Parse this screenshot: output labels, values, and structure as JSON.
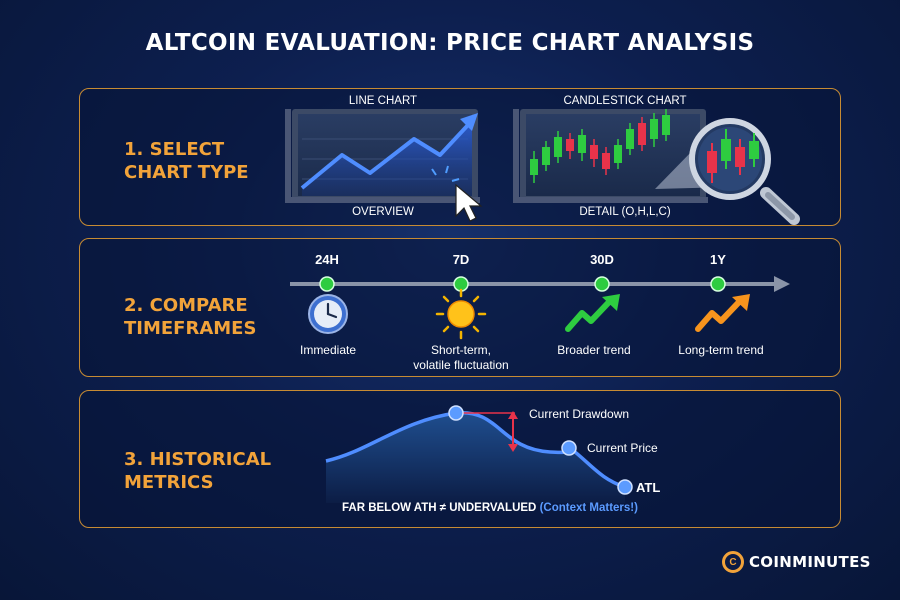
{
  "title": "ALTCOIN EVALUATION: PRICE CHART ANALYSIS",
  "colors": {
    "accent": "#f2a33a",
    "line_blue": "#3a7bff",
    "bull_green": "#2ecc40",
    "bear_red": "#e8334a",
    "arrow_red": "#e8334a"
  },
  "section1": {
    "title_line1": "1. SELECT",
    "title_line2": "CHART TYPE",
    "line_chart": {
      "top_label": "LINE CHART",
      "bottom_label": "OVERVIEW",
      "icon": "cursor-click-icon"
    },
    "candle_chart": {
      "top_label": "CANDLESTICK CHART",
      "bottom_label": "DETAIL (O,H,L,C)",
      "icon": "magnifier-icon"
    }
  },
  "section2": {
    "title_line1": "2. COMPARE",
    "title_line2": "TIMEFRAMES",
    "timeframes": [
      {
        "label": "24H",
        "desc": "Immediate",
        "icon": "clock-icon"
      },
      {
        "label": "7D",
        "desc_line1": "Short-term,",
        "desc_line2": "volatile fluctuation",
        "icon": "sun-icon"
      },
      {
        "label": "30D",
        "desc": "Broader trend",
        "icon": "green-trend-arrow-icon"
      },
      {
        "label": "1Y",
        "desc": "Long-term trend",
        "icon": "orange-trend-arrow-icon"
      }
    ]
  },
  "section3": {
    "title_line1": "3. HISTORICAL",
    "title_line2": "METRICS",
    "drawdown_label": "Current Drawdown",
    "price_label": "Current Price",
    "atl_label": "ATL",
    "note_main": "FAR BELOW ATH ≠ UNDERVALUED",
    "note_hl": "(Context Matters!)"
  },
  "brand": {
    "icon_letter": "C",
    "name": "COINMINUTES"
  }
}
